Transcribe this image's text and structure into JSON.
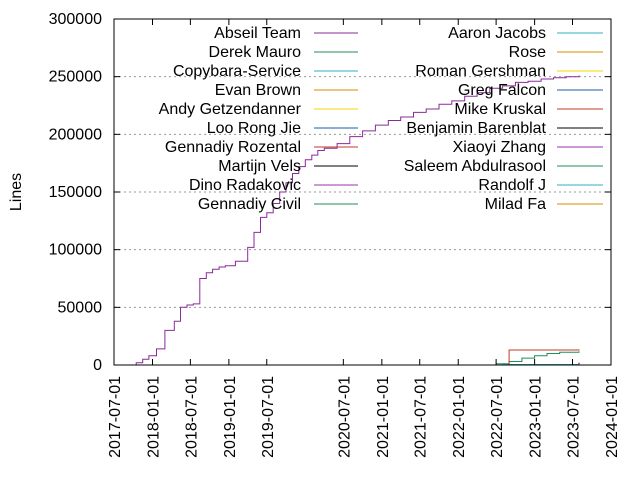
{
  "chart_data": {
    "type": "line",
    "title": "",
    "xlabel": "",
    "ylabel": "Lines",
    "x_axis": {
      "ticks": [
        "2017-07-01",
        "2018-01-01",
        "2018-07-01",
        "2019-01-01",
        "2019-07-01",
        "2020-07-01",
        "2021-01-01",
        "2021-07-01",
        "2022-01-01",
        "2022-07-01",
        "2023-01-01",
        "2023-07-01",
        "2024-01-01"
      ],
      "xlim": [
        "2017-07-01",
        "2024-01-01"
      ]
    },
    "y_axis": {
      "ticks": [
        0,
        50000,
        100000,
        150000,
        200000,
        250000,
        300000
      ],
      "ylim": [
        0,
        300000
      ]
    },
    "grid": "horizontal dotted",
    "legend_placement": "top, two columns",
    "series": [
      {
        "name": "Abseil Team",
        "color": "#8b2a9a",
        "x": [
          "2017-09-15",
          "2017-10-15",
          "2017-11-15",
          "2017-12-15",
          "2018-01-20",
          "2018-03-01",
          "2018-04-15",
          "2018-05-15",
          "2018-06-15",
          "2018-07-15",
          "2018-08-15",
          "2018-09-15",
          "2018-10-15",
          "2018-11-15",
          "2018-12-15",
          "2019-02-01",
          "2019-04-01",
          "2019-05-01",
          "2019-06-01",
          "2019-07-01",
          "2019-08-01",
          "2019-09-01",
          "2019-10-01",
          "2019-11-01",
          "2019-12-01",
          "2020-01-01",
          "2020-02-01",
          "2020-03-01",
          "2020-04-01",
          "2020-06-01",
          "2020-08-01",
          "2020-10-01",
          "2020-12-01",
          "2021-02-01",
          "2021-04-01",
          "2021-06-01",
          "2021-08-01",
          "2021-10-01",
          "2021-12-01",
          "2022-02-01",
          "2022-04-01",
          "2022-06-01",
          "2022-08-01",
          "2022-10-01",
          "2022-12-01",
          "2023-02-01",
          "2023-04-01",
          "2023-06-01",
          "2023-08-01"
        ],
        "values": [
          0,
          2000,
          5000,
          8000,
          14000,
          30000,
          38000,
          50000,
          52000,
          53000,
          75000,
          80000,
          83000,
          85000,
          86000,
          90000,
          102000,
          115000,
          128000,
          132000,
          140000,
          150000,
          158000,
          166000,
          172000,
          178000,
          182000,
          186000,
          188000,
          192000,
          198000,
          203000,
          208000,
          212000,
          215000,
          219000,
          222000,
          226000,
          229000,
          233000,
          236000,
          240000,
          242000,
          245000,
          246000,
          248000,
          249000,
          250000,
          251000
        ]
      },
      {
        "name": "Derek Mauro",
        "color": "#1f8f5a",
        "x": [
          "2019-01-01",
          "2022-06-01",
          "2022-07-01",
          "2022-09-01",
          "2022-11-01",
          "2023-01-01",
          "2023-03-01",
          "2023-05-01",
          "2023-08-01"
        ],
        "values": [
          0,
          0,
          1000,
          3000,
          6000,
          8000,
          10000,
          11000,
          12000
        ]
      },
      {
        "name": "Copybara-Service",
        "color": "#2fb0c0",
        "x": [
          "2019-01-01",
          "2022-06-01",
          "2022-08-01",
          "2023-08-01"
        ],
        "values": [
          0,
          0,
          400,
          600
        ]
      },
      {
        "name": "Evan Brown",
        "color": "#d98c00",
        "x": [
          "2019-01-01",
          "2023-08-01"
        ],
        "values": [
          0,
          300
        ]
      },
      {
        "name": "Andy Getzendanner",
        "color": "#f0d800",
        "x": [
          "2019-01-01",
          "2023-08-01"
        ],
        "values": [
          0,
          200
        ]
      },
      {
        "name": "Loo Rong Jie",
        "color": "#1a5ea8",
        "x": [
          "2019-01-01",
          "2023-08-01"
        ],
        "values": [
          0,
          150
        ]
      },
      {
        "name": "Gennadiy Rozental",
        "color": "#c0392b",
        "x": [
          "2019-01-01",
          "2022-07-01",
          "2022-09-01",
          "2023-08-01"
        ],
        "values": [
          0,
          0,
          13000,
          13500
        ]
      },
      {
        "name": "Martijn Vels",
        "color": "#000000",
        "x": [
          "2019-01-01",
          "2022-06-01",
          "2023-08-01"
        ],
        "values": [
          0,
          0,
          2000
        ]
      },
      {
        "name": "Dino Radakovic",
        "color": "#9b30b0",
        "x": [
          "2019-01-01",
          "2022-06-01",
          "2023-08-01"
        ],
        "values": [
          0,
          0,
          1000
        ]
      },
      {
        "name": "Gennadiy Civil",
        "color": "#1f8f5a",
        "x": [
          "2019-01-01",
          "2023-08-01"
        ],
        "values": [
          0,
          100
        ]
      },
      {
        "name": "Aaron Jacobs",
        "color": "#2fb0c0",
        "x": [
          "2019-01-01",
          "2023-08-01"
        ],
        "values": [
          0,
          100
        ]
      },
      {
        "name": "Rose",
        "color": "#d98c00",
        "x": [
          "2019-01-01",
          "2023-08-01"
        ],
        "values": [
          0,
          100
        ]
      },
      {
        "name": "Roman Gershman",
        "color": "#f0d800",
        "x": [
          "2019-01-01",
          "2023-08-01"
        ],
        "values": [
          0,
          100
        ]
      },
      {
        "name": "Greg Falcon",
        "color": "#1a5ea8",
        "x": [
          "2019-01-01",
          "2023-08-01"
        ],
        "values": [
          0,
          100
        ]
      },
      {
        "name": "Mike Kruskal",
        "color": "#c0392b",
        "x": [
          "2019-01-01",
          "2023-08-01"
        ],
        "values": [
          0,
          100
        ]
      },
      {
        "name": "Benjamin Barenblat",
        "color": "#000000",
        "x": [
          "2019-01-01",
          "2023-08-01"
        ],
        "values": [
          0,
          100
        ]
      },
      {
        "name": "Xiaoyi Zhang",
        "color": "#9b30b0",
        "x": [
          "2019-01-01",
          "2023-08-01"
        ],
        "values": [
          0,
          100
        ]
      },
      {
        "name": "Saleem Abdulrasool",
        "color": "#1f8f5a",
        "x": [
          "2019-01-01",
          "2023-08-01"
        ],
        "values": [
          0,
          100
        ]
      },
      {
        "name": "Randolf J",
        "color": "#2fb0c0",
        "x": [
          "2019-01-01",
          "2023-08-01"
        ],
        "values": [
          0,
          100
        ]
      },
      {
        "name": "Milad Fa",
        "color": "#d98c00",
        "x": [
          "2019-01-01",
          "2023-08-01"
        ],
        "values": [
          0,
          100
        ]
      }
    ]
  }
}
